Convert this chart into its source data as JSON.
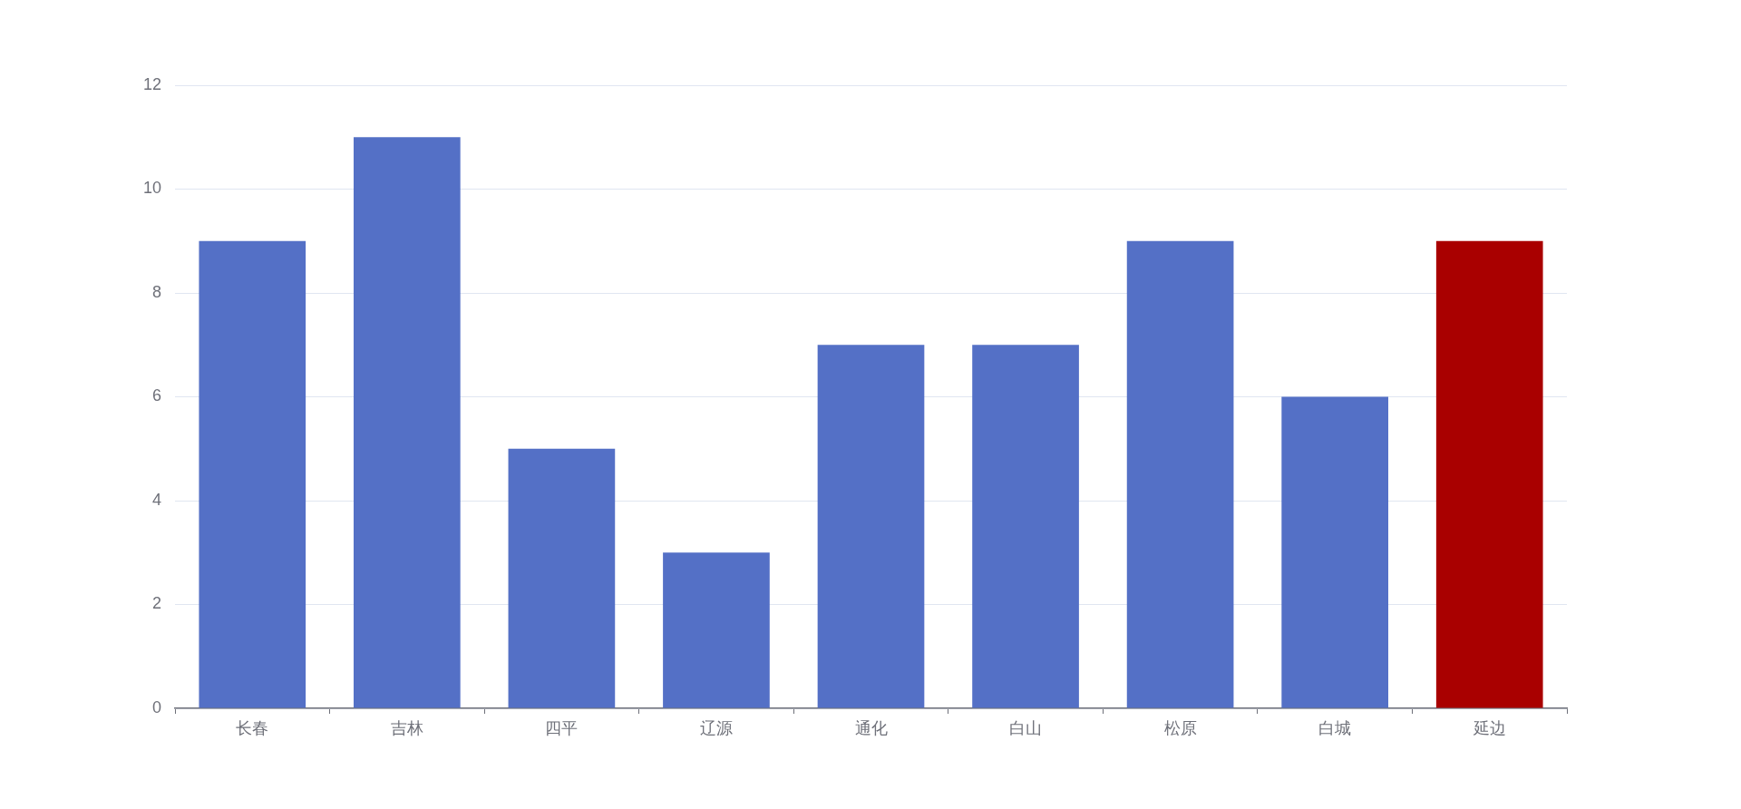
{
  "chart_data": {
    "type": "bar",
    "categories": [
      "长春",
      "吉林",
      "四平",
      "辽源",
      "通化",
      "白山",
      "松原",
      "白城",
      "延边"
    ],
    "values": [
      9,
      11,
      5,
      3,
      7,
      7,
      9,
      6,
      9
    ],
    "colors": [
      "#5470c6",
      "#5470c6",
      "#5470c6",
      "#5470c6",
      "#5470c6",
      "#5470c6",
      "#5470c6",
      "#5470c6",
      "#a90000"
    ],
    "ylim": [
      0,
      12
    ],
    "yticks": [
      0,
      2,
      4,
      6,
      8,
      10,
      12
    ],
    "grid": "y"
  }
}
